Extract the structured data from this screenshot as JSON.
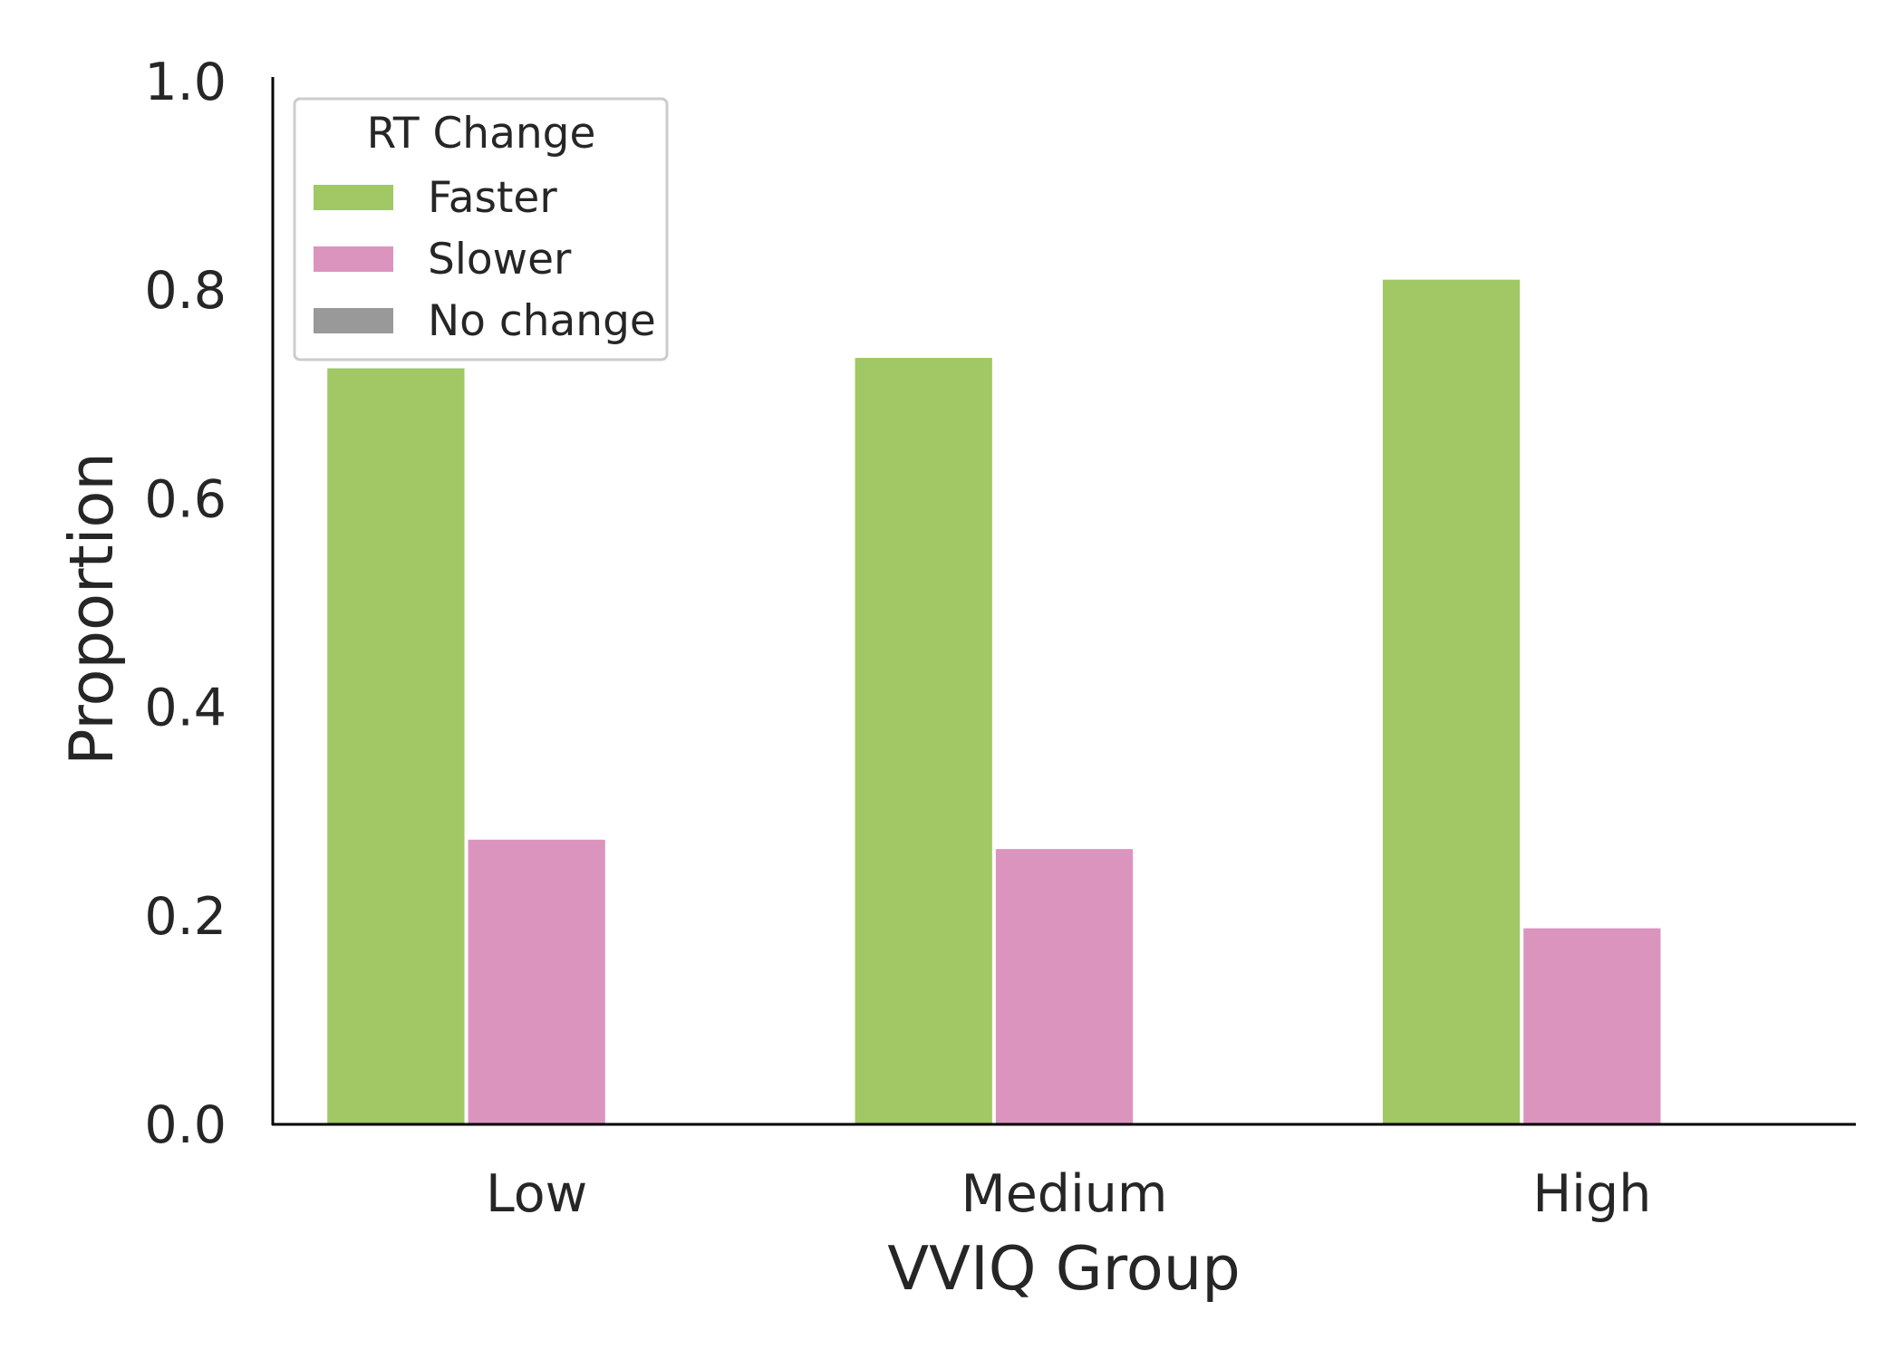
{
  "chart_data": {
    "type": "bar",
    "title": "",
    "xlabel": "VVIQ Group",
    "ylabel": "Proportion",
    "categories": [
      "Low",
      "Medium",
      "High"
    ],
    "series": [
      {
        "name": "Faster",
        "color": "#a1c864",
        "values": [
          0.725,
          0.735,
          0.81
        ]
      },
      {
        "name": "Slower",
        "color": "#db94be",
        "values": [
          0.273,
          0.264,
          0.188
        ]
      },
      {
        "name": "No change",
        "color": "#999999",
        "values": [
          0.0,
          0.0,
          0.0
        ]
      }
    ],
    "ylim": [
      0.0,
      1.0
    ],
    "yticks": [
      "0.0",
      "0.2",
      "0.4",
      "0.6",
      "0.8",
      "1.0"
    ],
    "grid": false,
    "legend": {
      "title": "RT Change",
      "placement": "top-left"
    }
  }
}
